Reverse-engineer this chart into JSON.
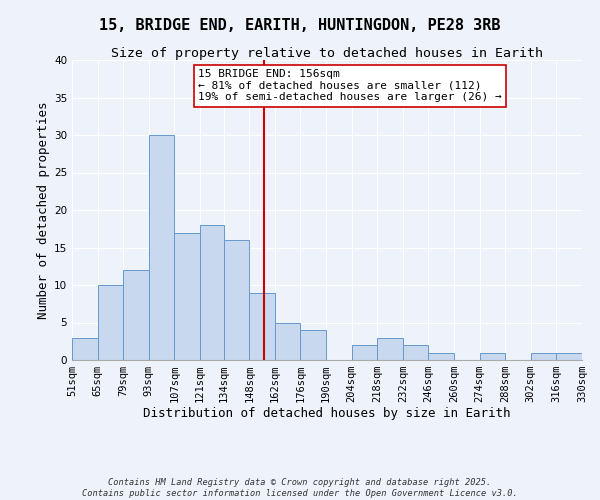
{
  "title": "15, BRIDGE END, EARITH, HUNTINGDON, PE28 3RB",
  "subtitle": "Size of property relative to detached houses in Earith",
  "xlabel": "Distribution of detached houses by size in Earith",
  "ylabel": "Number of detached properties",
  "footer_line1": "Contains HM Land Registry data © Crown copyright and database right 2025.",
  "footer_line2": "Contains public sector information licensed under the Open Government Licence v3.0.",
  "bin_edges": [
    51,
    65,
    79,
    93,
    107,
    121,
    134,
    148,
    162,
    176,
    190,
    204,
    218,
    232,
    246,
    260,
    274,
    288,
    302,
    316,
    330
  ],
  "bar_heights": [
    3,
    10,
    12,
    30,
    17,
    18,
    16,
    9,
    5,
    4,
    0,
    2,
    3,
    2,
    1,
    0,
    1,
    0,
    1,
    1
  ],
  "bar_color": "#c8d8ee",
  "bar_edge_color": "#6699cc",
  "vline_x": 156,
  "vline_color": "#cc0000",
  "ylim": [
    0,
    40
  ],
  "yticks": [
    0,
    5,
    10,
    15,
    20,
    25,
    30,
    35,
    40
  ],
  "annotation_text": "15 BRIDGE END: 156sqm\n← 81% of detached houses are smaller (112)\n19% of semi-detached houses are larger (26) →",
  "annotation_box_color": "#ffffff",
  "annotation_box_edge": "#cc0000",
  "bg_color": "#eef2fb",
  "grid_color": "#ffffff",
  "title_fontsize": 11,
  "subtitle_fontsize": 9.5,
  "axis_label_fontsize": 9,
  "tick_fontsize": 7.5,
  "annotation_fontsize": 8
}
